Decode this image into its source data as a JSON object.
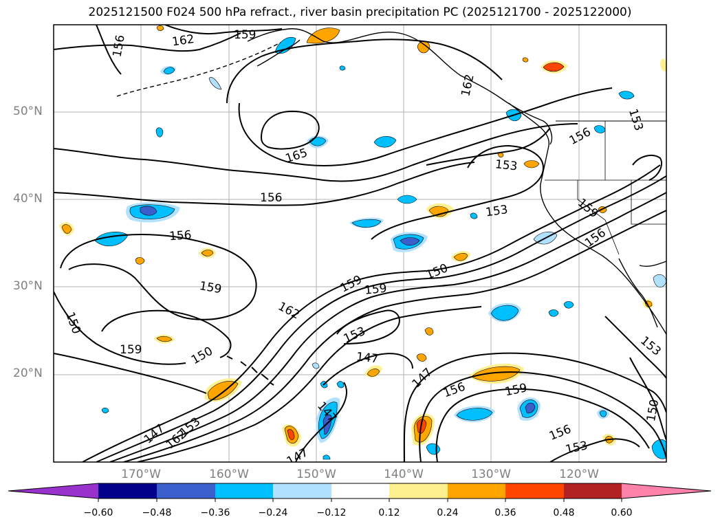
{
  "title": "2025121500 F024 500 hPa refract., river basin precipitation PC (2025121700 - 2025122000)",
  "lat_labels": [
    "50°N",
    "40°N",
    "30°N",
    "20°N"
  ],
  "lon_labels": [
    "170°W",
    "160°W",
    "150°W",
    "140°W",
    "130°W",
    "120°W"
  ],
  "contour_labels": [
    "162",
    "159",
    "156",
    "165",
    "156",
    "156",
    "159",
    "159",
    "150",
    "159",
    "150",
    "162",
    "159",
    "150",
    "153",
    "147",
    "147",
    "147",
    "153",
    "162",
    "147",
    "147",
    "153",
    "156",
    "159",
    "156",
    "153",
    "150",
    "153",
    "153",
    "159",
    "156",
    "162",
    "153",
    "156"
  ],
  "colorbar": {
    "colors": [
      "#9932cc",
      "#00008b",
      "#3a5fcd",
      "#00bfff",
      "#b0e2ff",
      "#ffffff",
      "#fff08f",
      "#ffa500",
      "#ff4500",
      "#b22222",
      "#ff82ab"
    ],
    "tick_labels": [
      "−0.60",
      "−0.48",
      "−0.36",
      "−0.24",
      "−0.12",
      "0.12",
      "0.24",
      "0.36",
      "0.48",
      "0.60"
    ]
  }
}
